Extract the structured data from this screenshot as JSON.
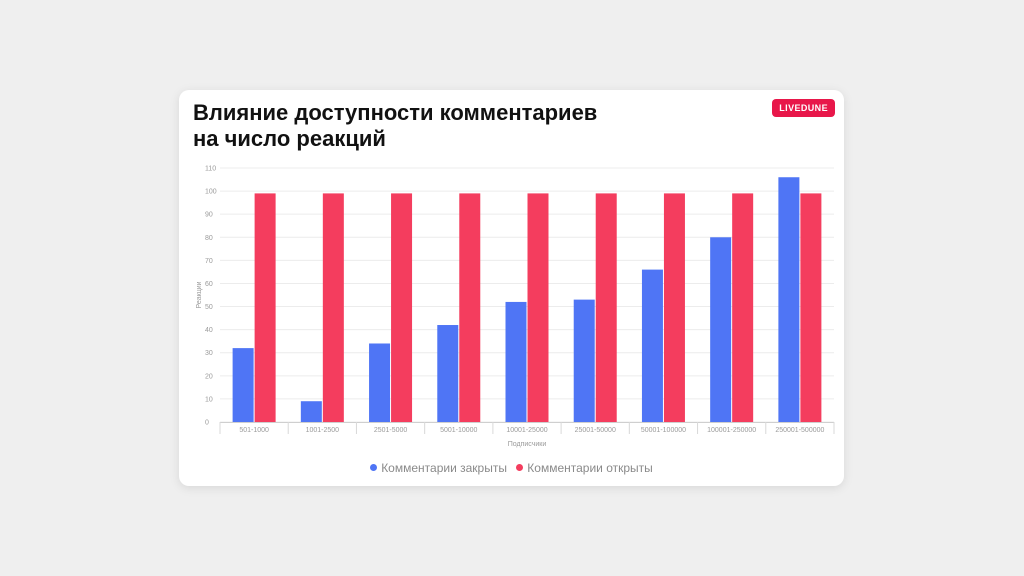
{
  "title": "Влияние доступности комментариев\nна число реакций",
  "brand": "LIVEDUNE",
  "colors": {
    "closed": "#4f75f5",
    "open": "#f43d5e",
    "badge": "#e8174a"
  },
  "chart_data": {
    "type": "bar",
    "title": "Влияние доступности комментариев на число реакций",
    "xlabel": "Подписчики",
    "ylabel": "Реакции",
    "ylim": [
      0,
      110
    ],
    "yticks": [
      0,
      10,
      20,
      30,
      40,
      50,
      60,
      70,
      80,
      90,
      100,
      110
    ],
    "grid": true,
    "legend_position": "bottom",
    "categories": [
      "501-1000",
      "1001-2500",
      "2501-5000",
      "5001-10000",
      "10001-25000",
      "25001-50000",
      "50001-100000",
      "100001-250000",
      "250001-500000"
    ],
    "series": [
      {
        "name": "Комментарии закрыты",
        "values": [
          32,
          9,
          34,
          42,
          52,
          53,
          66,
          80,
          106
        ]
      },
      {
        "name": "Комментарии открыты",
        "values": [
          99,
          99,
          99,
          99,
          99,
          99,
          99,
          99,
          99
        ]
      }
    ]
  }
}
